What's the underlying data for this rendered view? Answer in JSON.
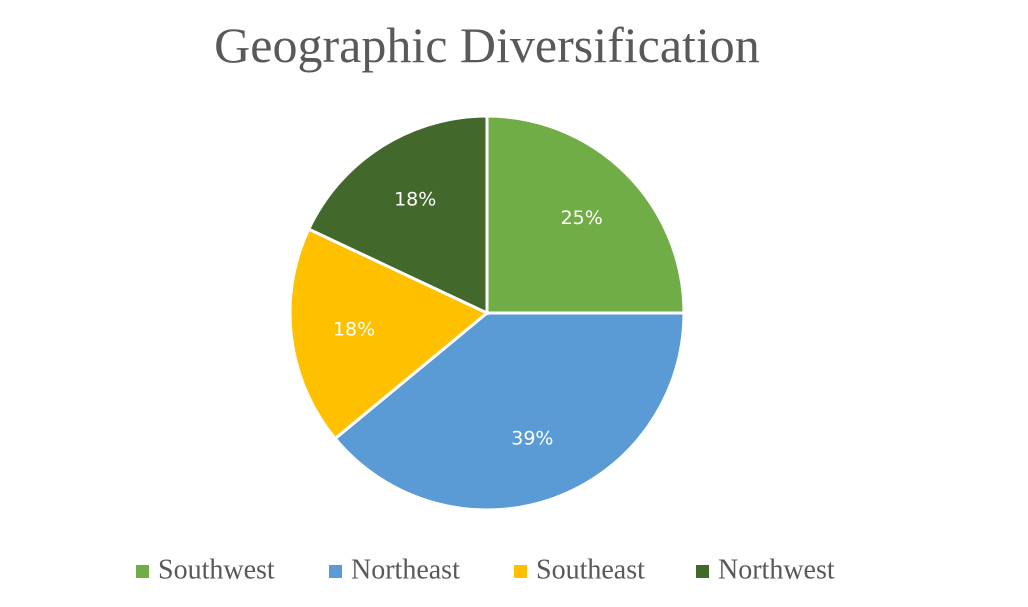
{
  "chart_data": {
    "type": "pie",
    "title": "Geographic Diversification",
    "categories": [
      "Southwest",
      "Northeast",
      "Southeast",
      "Northwest"
    ],
    "values": [
      25,
      39,
      18,
      18
    ],
    "value_labels": [
      "25%",
      "39%",
      "18%",
      "18%"
    ],
    "colors": [
      "#70ad47",
      "#5b9bd5",
      "#ffc000",
      "#43682b"
    ],
    "legend": "bottom"
  }
}
